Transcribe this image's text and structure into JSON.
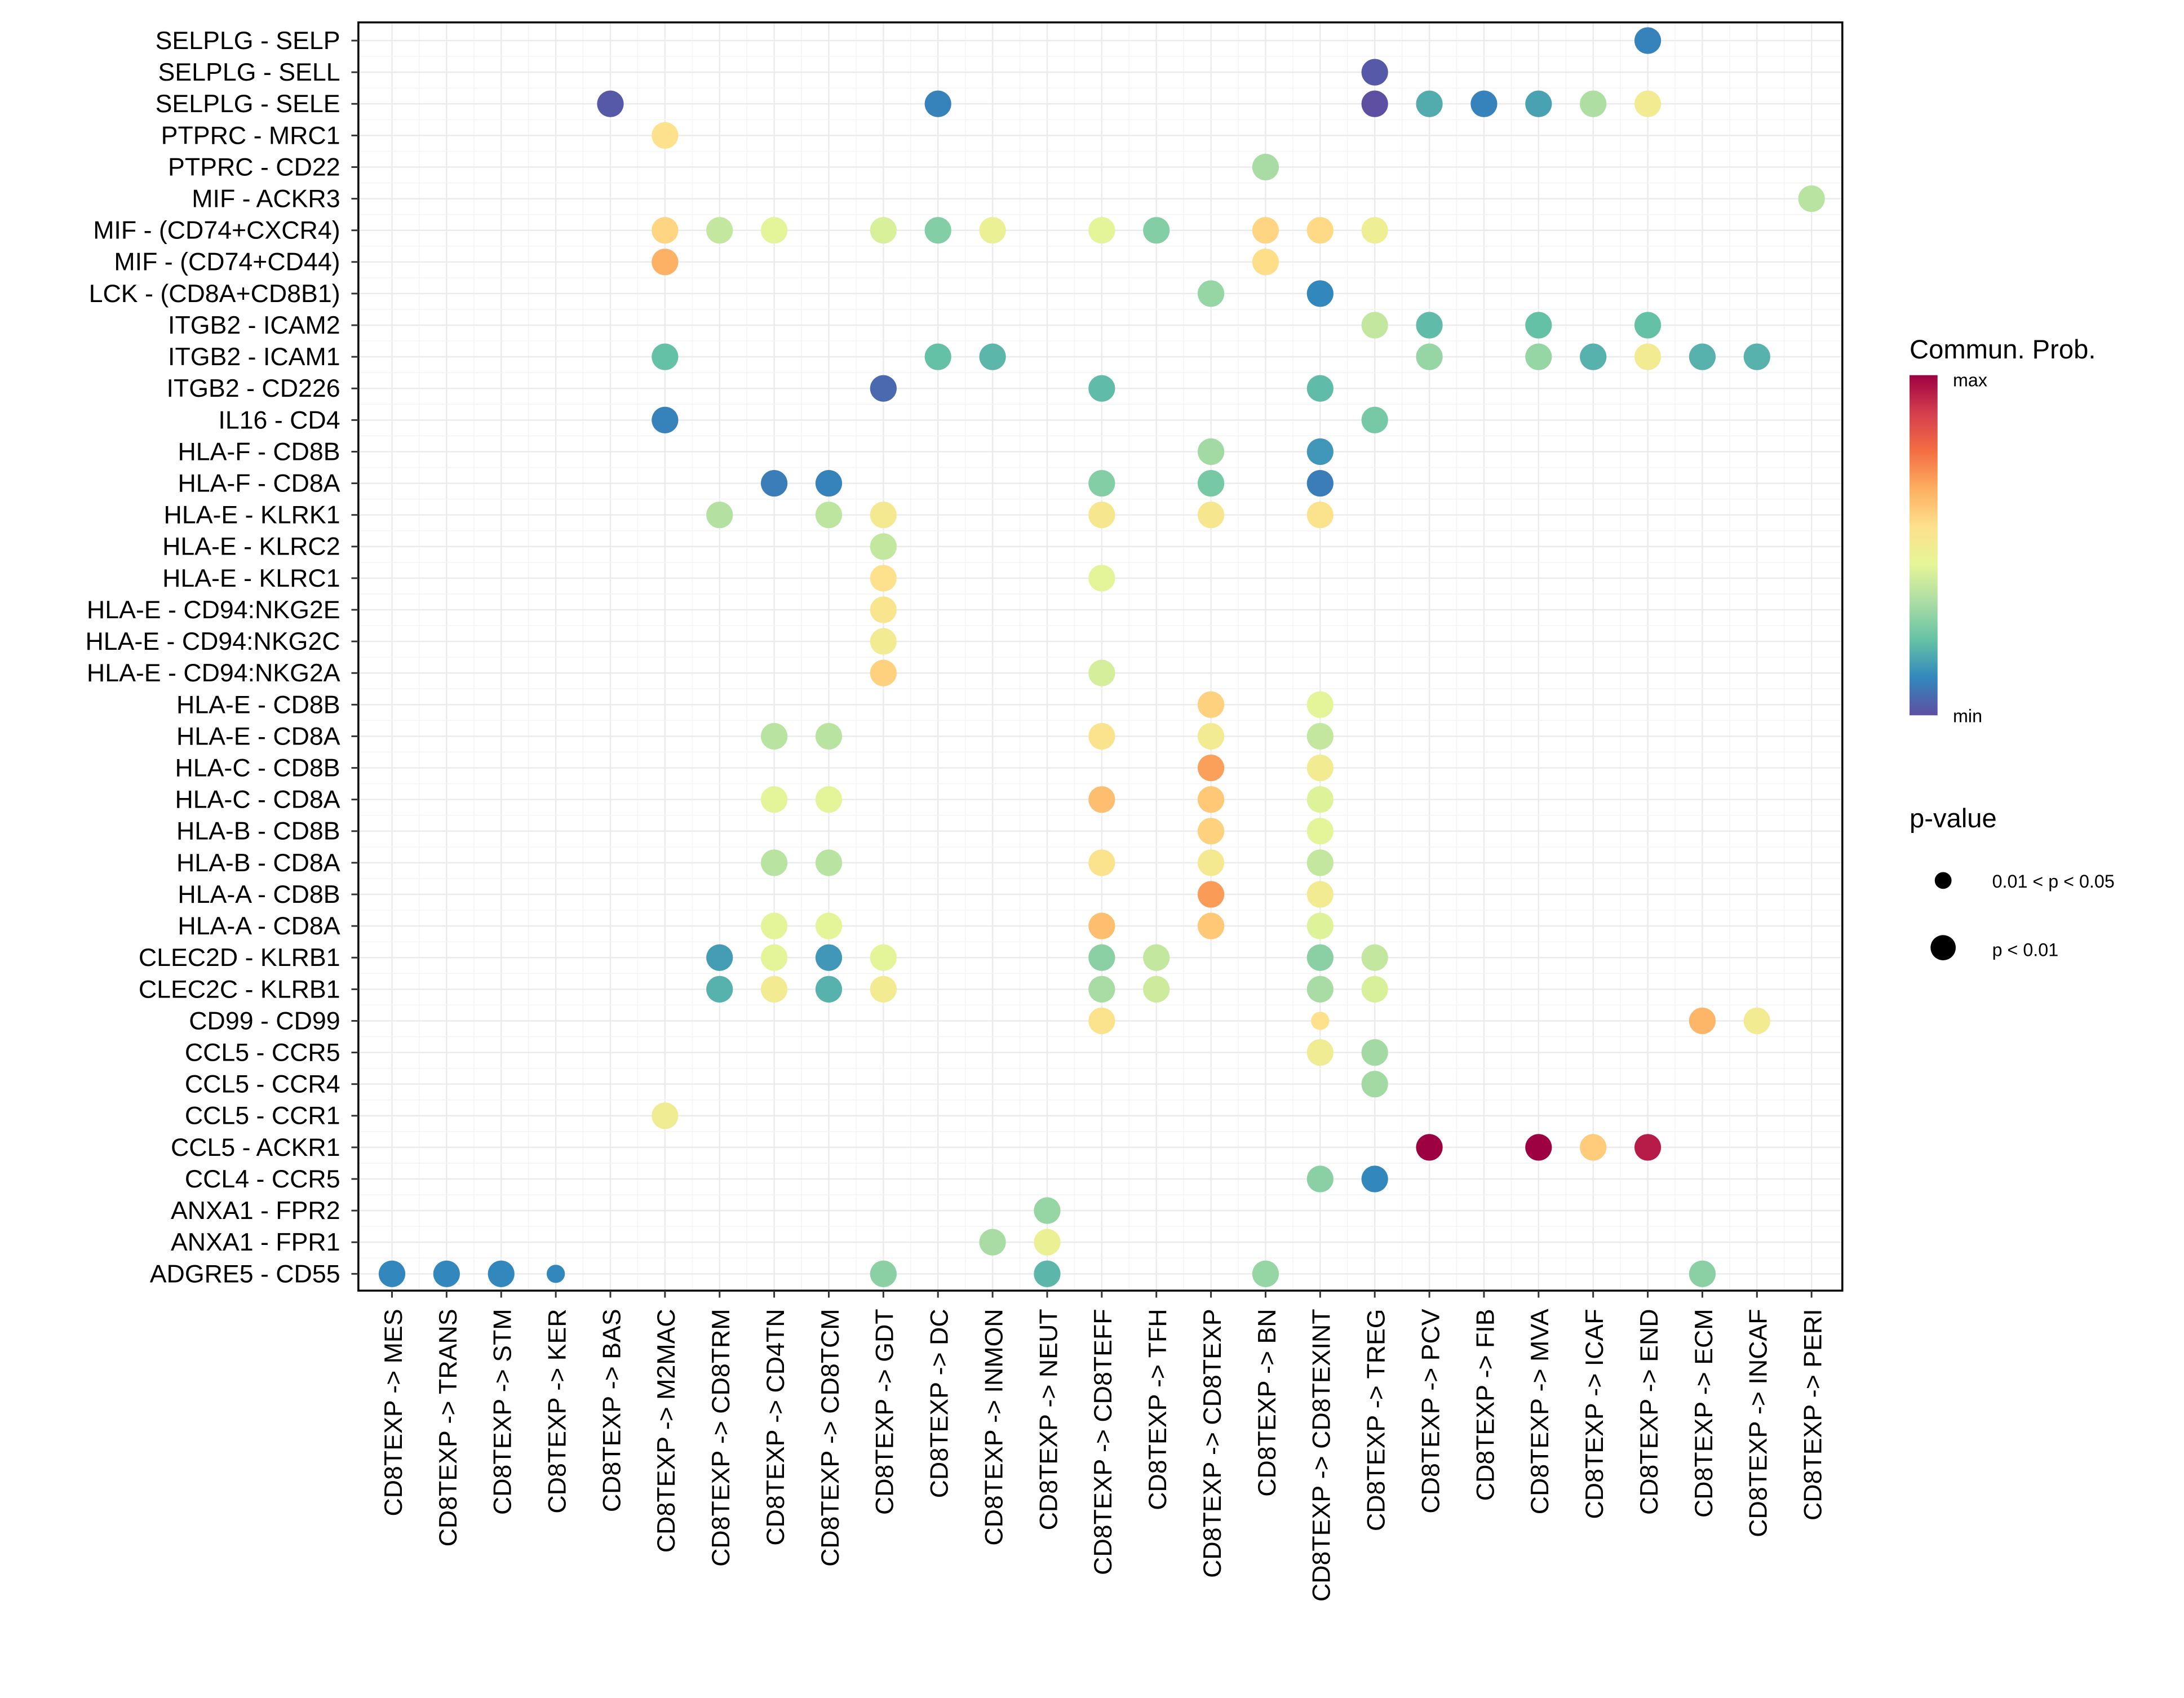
{
  "chart_data": {
    "type": "scatter",
    "subtype": "dot-plot",
    "title": "",
    "xlabel": "",
    "ylabel": "",
    "grid": true,
    "x_categories": [
      "CD8TEXP -> MES",
      "CD8TEXP -> TRANS",
      "CD8TEXP -> STM",
      "CD8TEXP -> KER",
      "CD8TEXP -> BAS",
      "CD8TEXP -> M2MAC",
      "CD8TEXP -> CD8TRM",
      "CD8TEXP -> CD4TN",
      "CD8TEXP -> CD8TCM",
      "CD8TEXP -> GDT",
      "CD8TEXP -> DC",
      "CD8TEXP -> INMON",
      "CD8TEXP -> NEUT",
      "CD8TEXP -> CD8TEFF",
      "CD8TEXP -> TFH",
      "CD8TEXP -> CD8TEXP",
      "CD8TEXP -> BN",
      "CD8TEXP -> CD8TEXINT",
      "CD8TEXP -> TREG",
      "CD8TEXP -> PCV",
      "CD8TEXP -> FIB",
      "CD8TEXP -> MVA",
      "CD8TEXP -> ICAF",
      "CD8TEXP -> END",
      "CD8TEXP -> ECM",
      "CD8TEXP -> INCAF",
      "CD8TEXP -> PERI"
    ],
    "y_categories": [
      "SELPLG - SELP",
      "SELPLG - SELL",
      "SELPLG - SELE",
      "PTPRC - MRC1",
      "PTPRC - CD22",
      "MIF - ACKR3",
      "MIF - (CD74+CXCR4)",
      "MIF - (CD74+CD44)",
      "LCK - (CD8A+CD8B1)",
      "ITGB2 - ICAM2",
      "ITGB2 - ICAM1",
      "ITGB2 - CD226",
      "IL16 - CD4",
      "HLA-F - CD8B",
      "HLA-F - CD8A",
      "HLA-E - KLRK1",
      "HLA-E - KLRC2",
      "HLA-E - KLRC1",
      "HLA-E - CD94:NKG2E",
      "HLA-E - CD94:NKG2C",
      "HLA-E - CD94:NKG2A",
      "HLA-E - CD8B",
      "HLA-E - CD8A",
      "HLA-C - CD8B",
      "HLA-C - CD8A",
      "HLA-B - CD8B",
      "HLA-B - CD8A",
      "HLA-A - CD8B",
      "HLA-A - CD8A",
      "CLEC2D - KLRB1",
      "CLEC2C - KLRB1",
      "CD99 - CD99",
      "CCL5 - CCR5",
      "CCL5 - CCR4",
      "CCL5 - CCR1",
      "CCL5 - ACKR1",
      "CCL4 - CCR5",
      "ANXA1 - FPR2",
      "ANXA1 - FPR1",
      "ADGRE5 - CD55"
    ],
    "points_note": "x = source->target pair, y = ligand-receptor pair, prob = normalized communication probability (0=min,1=max), p = p-value class",
    "points": [
      {
        "x": "CD8TEXP -> END",
        "y": "SELPLG - SELP",
        "prob": 0.1,
        "p": "p < 0.01"
      },
      {
        "x": "CD8TEXP -> TREG",
        "y": "SELPLG - SELL",
        "prob": 0.02,
        "p": "p < 0.01"
      },
      {
        "x": "CD8TEXP -> BAS",
        "y": "SELPLG - SELE",
        "prob": 0.02,
        "p": "p < 0.01"
      },
      {
        "x": "CD8TEXP -> DC",
        "y": "SELPLG - SELE",
        "prob": 0.1,
        "p": "p < 0.01"
      },
      {
        "x": "CD8TEXP -> TREG",
        "y": "SELPLG - SELE",
        "prob": 0.0,
        "p": "p < 0.01"
      },
      {
        "x": "CD8TEXP -> PCV",
        "y": "SELPLG - SELE",
        "prob": 0.18,
        "p": "p < 0.01"
      },
      {
        "x": "CD8TEXP -> FIB",
        "y": "SELPLG - SELE",
        "prob": 0.1,
        "p": "p < 0.01"
      },
      {
        "x": "CD8TEXP -> MVA",
        "y": "SELPLG - SELE",
        "prob": 0.16,
        "p": "p < 0.01"
      },
      {
        "x": "CD8TEXP -> ICAF",
        "y": "SELPLG - SELE",
        "prob": 0.34,
        "p": "p < 0.01"
      },
      {
        "x": "CD8TEXP -> END",
        "y": "SELPLG - SELE",
        "prob": 0.5,
        "p": "p < 0.01"
      },
      {
        "x": "CD8TEXP -> M2MAC",
        "y": "PTPRC - MRC1",
        "prob": 0.55,
        "p": "p < 0.01"
      },
      {
        "x": "CD8TEXP -> BN",
        "y": "PTPRC - CD22",
        "prob": 0.33,
        "p": "p < 0.01"
      },
      {
        "x": "CD8TEXP -> PERI",
        "y": "MIF - ACKR3",
        "prob": 0.36,
        "p": "p < 0.01"
      },
      {
        "x": "CD8TEXP -> M2MAC",
        "y": "MIF - (CD74+CXCR4)",
        "prob": 0.58,
        "p": "p < 0.01"
      },
      {
        "x": "CD8TEXP -> CD8TRM",
        "y": "MIF - (CD74+CXCR4)",
        "prob": 0.38,
        "p": "p < 0.01"
      },
      {
        "x": "CD8TEXP -> CD4TN",
        "y": "MIF - (CD74+CXCR4)",
        "prob": 0.44,
        "p": "p < 0.01"
      },
      {
        "x": "CD8TEXP -> GDT",
        "y": "MIF - (CD74+CXCR4)",
        "prob": 0.42,
        "p": "p < 0.01"
      },
      {
        "x": "CD8TEXP -> DC",
        "y": "MIF - (CD74+CXCR4)",
        "prob": 0.27,
        "p": "p < 0.01"
      },
      {
        "x": "CD8TEXP -> INMON",
        "y": "MIF - (CD74+CXCR4)",
        "prob": 0.47,
        "p": "p < 0.01"
      },
      {
        "x": "CD8TEXP -> CD8TEFF",
        "y": "MIF - (CD74+CXCR4)",
        "prob": 0.44,
        "p": "p < 0.01"
      },
      {
        "x": "CD8TEXP -> TFH",
        "y": "MIF - (CD74+CXCR4)",
        "prob": 0.27,
        "p": "p < 0.01"
      },
      {
        "x": "CD8TEXP -> BN",
        "y": "MIF - (CD74+CXCR4)",
        "prob": 0.58,
        "p": "p < 0.01"
      },
      {
        "x": "CD8TEXP -> CD8TEXINT",
        "y": "MIF - (CD74+CXCR4)",
        "prob": 0.57,
        "p": "p < 0.01"
      },
      {
        "x": "CD8TEXP -> TREG",
        "y": "MIF - (CD74+CXCR4)",
        "prob": 0.48,
        "p": "p < 0.01"
      },
      {
        "x": "CD8TEXP -> M2MAC",
        "y": "MIF - (CD74+CD44)",
        "prob": 0.66,
        "p": "p < 0.01"
      },
      {
        "x": "CD8TEXP -> BN",
        "y": "MIF - (CD74+CD44)",
        "prob": 0.56,
        "p": "p < 0.01"
      },
      {
        "x": "CD8TEXP -> CD8TEXP",
        "y": "LCK - (CD8A+CD8B1)",
        "prob": 0.3,
        "p": "p < 0.01"
      },
      {
        "x": "CD8TEXP -> CD8TEXINT",
        "y": "LCK - (CD8A+CD8B1)",
        "prob": 0.11,
        "p": "p < 0.01"
      },
      {
        "x": "CD8TEXP -> TREG",
        "y": "ITGB2 - ICAM2",
        "prob": 0.38,
        "p": "p < 0.01"
      },
      {
        "x": "CD8TEXP -> PCV",
        "y": "ITGB2 - ICAM2",
        "prob": 0.21,
        "p": "p < 0.01"
      },
      {
        "x": "CD8TEXP -> MVA",
        "y": "ITGB2 - ICAM2",
        "prob": 0.22,
        "p": "p < 0.01"
      },
      {
        "x": "CD8TEXP -> END",
        "y": "ITGB2 - ICAM2",
        "prob": 0.22,
        "p": "p < 0.01"
      },
      {
        "x": "CD8TEXP -> M2MAC",
        "y": "ITGB2 - ICAM1",
        "prob": 0.22,
        "p": "p < 0.01"
      },
      {
        "x": "CD8TEXP -> DC",
        "y": "ITGB2 - ICAM1",
        "prob": 0.22,
        "p": "p < 0.01"
      },
      {
        "x": "CD8TEXP -> INMON",
        "y": "ITGB2 - ICAM1",
        "prob": 0.2,
        "p": "p < 0.01"
      },
      {
        "x": "CD8TEXP -> PCV",
        "y": "ITGB2 - ICAM1",
        "prob": 0.3,
        "p": "p < 0.01"
      },
      {
        "x": "CD8TEXP -> MVA",
        "y": "ITGB2 - ICAM1",
        "prob": 0.3,
        "p": "p < 0.01"
      },
      {
        "x": "CD8TEXP -> ICAF",
        "y": "ITGB2 - ICAM1",
        "prob": 0.19,
        "p": "p < 0.01"
      },
      {
        "x": "CD8TEXP -> END",
        "y": "ITGB2 - ICAM1",
        "prob": 0.5,
        "p": "p < 0.01"
      },
      {
        "x": "CD8TEXP -> ECM",
        "y": "ITGB2 - ICAM1",
        "prob": 0.19,
        "p": "p < 0.01"
      },
      {
        "x": "CD8TEXP -> INCAF",
        "y": "ITGB2 - ICAM1",
        "prob": 0.19,
        "p": "p < 0.01"
      },
      {
        "x": "CD8TEXP -> GDT",
        "y": "ITGB2 - CD226",
        "prob": 0.05,
        "p": "p < 0.01"
      },
      {
        "x": "CD8TEXP -> CD8TEFF",
        "y": "ITGB2 - CD226",
        "prob": 0.21,
        "p": "p < 0.01"
      },
      {
        "x": "CD8TEXP -> CD8TEXINT",
        "y": "ITGB2 - CD226",
        "prob": 0.21,
        "p": "p < 0.01"
      },
      {
        "x": "CD8TEXP -> M2MAC",
        "y": "IL16 - CD4",
        "prob": 0.1,
        "p": "p < 0.01"
      },
      {
        "x": "CD8TEXP -> TREG",
        "y": "IL16 - CD4",
        "prob": 0.25,
        "p": "p < 0.01"
      },
      {
        "x": "CD8TEXP -> CD8TEXP",
        "y": "HLA-F - CD8B",
        "prob": 0.32,
        "p": "p < 0.01"
      },
      {
        "x": "CD8TEXP -> CD8TEXINT",
        "y": "HLA-F - CD8B",
        "prob": 0.14,
        "p": "p < 0.01"
      },
      {
        "x": "CD8TEXP -> CD4TN",
        "y": "HLA-F - CD8A",
        "prob": 0.09,
        "p": "p < 0.01"
      },
      {
        "x": "CD8TEXP -> CD8TCM",
        "y": "HLA-F - CD8A",
        "prob": 0.1,
        "p": "p < 0.01"
      },
      {
        "x": "CD8TEXP -> CD8TEFF",
        "y": "HLA-F - CD8A",
        "prob": 0.27,
        "p": "p < 0.01"
      },
      {
        "x": "CD8TEXP -> CD8TEXP",
        "y": "HLA-F - CD8A",
        "prob": 0.25,
        "p": "p < 0.01"
      },
      {
        "x": "CD8TEXP -> CD8TEXINT",
        "y": "HLA-F - CD8A",
        "prob": 0.09,
        "p": "p < 0.01"
      },
      {
        "x": "CD8TEXP -> CD8TRM",
        "y": "HLA-E - KLRK1",
        "prob": 0.35,
        "p": "p < 0.01"
      },
      {
        "x": "CD8TEXP -> CD8TCM",
        "y": "HLA-E - KLRK1",
        "prob": 0.37,
        "p": "p < 0.01"
      },
      {
        "x": "CD8TEXP -> GDT",
        "y": "HLA-E - KLRK1",
        "prob": 0.51,
        "p": "p < 0.01"
      },
      {
        "x": "CD8TEXP -> CD8TEFF",
        "y": "HLA-E - KLRK1",
        "prob": 0.52,
        "p": "p < 0.01"
      },
      {
        "x": "CD8TEXP -> CD8TEXP",
        "y": "HLA-E - KLRK1",
        "prob": 0.52,
        "p": "p < 0.01"
      },
      {
        "x": "CD8TEXP -> CD8TEXINT",
        "y": "HLA-E - KLRK1",
        "prob": 0.54,
        "p": "p < 0.01"
      },
      {
        "x": "CD8TEXP -> GDT",
        "y": "HLA-E - KLRC2",
        "prob": 0.38,
        "p": "p < 0.01"
      },
      {
        "x": "CD8TEXP -> GDT",
        "y": "HLA-E - KLRC1",
        "prob": 0.55,
        "p": "p < 0.01"
      },
      {
        "x": "CD8TEXP -> CD8TEFF",
        "y": "HLA-E - KLRC1",
        "prob": 0.44,
        "p": "p < 0.01"
      },
      {
        "x": "CD8TEXP -> GDT",
        "y": "HLA-E - CD94:NKG2E",
        "prob": 0.53,
        "p": "p < 0.01"
      },
      {
        "x": "CD8TEXP -> GDT",
        "y": "HLA-E - CD94:NKG2C",
        "prob": 0.5,
        "p": "p < 0.01"
      },
      {
        "x": "CD8TEXP -> GDT",
        "y": "HLA-E - CD94:NKG2A",
        "prob": 0.59,
        "p": "p < 0.01"
      },
      {
        "x": "CD8TEXP -> CD8TEFF",
        "y": "HLA-E - CD94:NKG2A",
        "prob": 0.41,
        "p": "p < 0.01"
      },
      {
        "x": "CD8TEXP -> CD8TEXP",
        "y": "HLA-E - CD8B",
        "prob": 0.59,
        "p": "p < 0.01"
      },
      {
        "x": "CD8TEXP -> CD8TEXINT",
        "y": "HLA-E - CD8B",
        "prob": 0.44,
        "p": "p < 0.01"
      },
      {
        "x": "CD8TEXP -> CD4TN",
        "y": "HLA-E - CD8A",
        "prob": 0.36,
        "p": "p < 0.01"
      },
      {
        "x": "CD8TEXP -> CD8TCM",
        "y": "HLA-E - CD8A",
        "prob": 0.36,
        "p": "p < 0.01"
      },
      {
        "x": "CD8TEXP -> CD8TEFF",
        "y": "HLA-E - CD8A",
        "prob": 0.54,
        "p": "p < 0.01"
      },
      {
        "x": "CD8TEXP -> CD8TEXP",
        "y": "HLA-E - CD8A",
        "prob": 0.5,
        "p": "p < 0.01"
      },
      {
        "x": "CD8TEXP -> CD8TEXINT",
        "y": "HLA-E - CD8A",
        "prob": 0.38,
        "p": "p < 0.01"
      },
      {
        "x": "CD8TEXP -> CD8TEXP",
        "y": "HLA-C - CD8B",
        "prob": 0.69,
        "p": "p < 0.01"
      },
      {
        "x": "CD8TEXP -> CD8TEXINT",
        "y": "HLA-C - CD8B",
        "prob": 0.5,
        "p": "p < 0.01"
      },
      {
        "x": "CD8TEXP -> CD4TN",
        "y": "HLA-C - CD8A",
        "prob": 0.44,
        "p": "p < 0.01"
      },
      {
        "x": "CD8TEXP -> CD8TCM",
        "y": "HLA-C - CD8A",
        "prob": 0.44,
        "p": "p < 0.01"
      },
      {
        "x": "CD8TEXP -> CD8TEFF",
        "y": "HLA-C - CD8A",
        "prob": 0.63,
        "p": "p < 0.01"
      },
      {
        "x": "CD8TEXP -> CD8TEXP",
        "y": "HLA-C - CD8A",
        "prob": 0.61,
        "p": "p < 0.01"
      },
      {
        "x": "CD8TEXP -> CD8TEXINT",
        "y": "HLA-C - CD8A",
        "prob": 0.43,
        "p": "p < 0.01"
      },
      {
        "x": "CD8TEXP -> CD8TEXP",
        "y": "HLA-B - CD8B",
        "prob": 0.59,
        "p": "p < 0.01"
      },
      {
        "x": "CD8TEXP -> CD8TEXINT",
        "y": "HLA-B - CD8B",
        "prob": 0.44,
        "p": "p < 0.01"
      },
      {
        "x": "CD8TEXP -> CD4TN",
        "y": "HLA-B - CD8A",
        "prob": 0.36,
        "p": "p < 0.01"
      },
      {
        "x": "CD8TEXP -> CD8TCM",
        "y": "HLA-B - CD8A",
        "prob": 0.36,
        "p": "p < 0.01"
      },
      {
        "x": "CD8TEXP -> CD8TEFF",
        "y": "HLA-B - CD8A",
        "prob": 0.54,
        "p": "p < 0.01"
      },
      {
        "x": "CD8TEXP -> CD8TEXP",
        "y": "HLA-B - CD8A",
        "prob": 0.51,
        "p": "p < 0.01"
      },
      {
        "x": "CD8TEXP -> CD8TEXINT",
        "y": "HLA-B - CD8A",
        "prob": 0.38,
        "p": "p < 0.01"
      },
      {
        "x": "CD8TEXP -> CD8TEXP",
        "y": "HLA-A - CD8B",
        "prob": 0.7,
        "p": "p < 0.01"
      },
      {
        "x": "CD8TEXP -> CD8TEXINT",
        "y": "HLA-A - CD8B",
        "prob": 0.5,
        "p": "p < 0.01"
      },
      {
        "x": "CD8TEXP -> CD4TN",
        "y": "HLA-A - CD8A",
        "prob": 0.44,
        "p": "p < 0.01"
      },
      {
        "x": "CD8TEXP -> CD8TCM",
        "y": "HLA-A - CD8A",
        "prob": 0.44,
        "p": "p < 0.01"
      },
      {
        "x": "CD8TEXP -> CD8TEFF",
        "y": "HLA-A - CD8A",
        "prob": 0.63,
        "p": "p < 0.01"
      },
      {
        "x": "CD8TEXP -> CD8TEXP",
        "y": "HLA-A - CD8A",
        "prob": 0.61,
        "p": "p < 0.01"
      },
      {
        "x": "CD8TEXP -> CD8TEXINT",
        "y": "HLA-A - CD8A",
        "prob": 0.43,
        "p": "p < 0.01"
      },
      {
        "x": "CD8TEXP -> CD8TRM",
        "y": "CLEC2D - KLRB1",
        "prob": 0.15,
        "p": "p < 0.01"
      },
      {
        "x": "CD8TEXP -> CD4TN",
        "y": "CLEC2D - KLRB1",
        "prob": 0.44,
        "p": "p < 0.01"
      },
      {
        "x": "CD8TEXP -> CD8TCM",
        "y": "CLEC2D - KLRB1",
        "prob": 0.14,
        "p": "p < 0.01"
      },
      {
        "x": "CD8TEXP -> GDT",
        "y": "CLEC2D - KLRB1",
        "prob": 0.44,
        "p": "p < 0.01"
      },
      {
        "x": "CD8TEXP -> CD8TEFF",
        "y": "CLEC2D - KLRB1",
        "prob": 0.28,
        "p": "p < 0.01"
      },
      {
        "x": "CD8TEXP -> TFH",
        "y": "CLEC2D - KLRB1",
        "prob": 0.38,
        "p": "p < 0.01"
      },
      {
        "x": "CD8TEXP -> CD8TEXINT",
        "y": "CLEC2D - KLRB1",
        "prob": 0.28,
        "p": "p < 0.01"
      },
      {
        "x": "CD8TEXP -> TREG",
        "y": "CLEC2D - KLRB1",
        "prob": 0.38,
        "p": "p < 0.01"
      },
      {
        "x": "CD8TEXP -> CD8TRM",
        "y": "CLEC2C - KLRB1",
        "prob": 0.19,
        "p": "p < 0.01"
      },
      {
        "x": "CD8TEXP -> CD4TN",
        "y": "CLEC2C - KLRB1",
        "prob": 0.5,
        "p": "p < 0.01"
      },
      {
        "x": "CD8TEXP -> CD8TCM",
        "y": "CLEC2C - KLRB1",
        "prob": 0.19,
        "p": "p < 0.01"
      },
      {
        "x": "CD8TEXP -> GDT",
        "y": "CLEC2C - KLRB1",
        "prob": 0.5,
        "p": "p < 0.01"
      },
      {
        "x": "CD8TEXP -> CD8TEFF",
        "y": "CLEC2C - KLRB1",
        "prob": 0.33,
        "p": "p < 0.01"
      },
      {
        "x": "CD8TEXP -> TFH",
        "y": "CLEC2C - KLRB1",
        "prob": 0.4,
        "p": "p < 0.01"
      },
      {
        "x": "CD8TEXP -> CD8TEXINT",
        "y": "CLEC2C - KLRB1",
        "prob": 0.33,
        "p": "p < 0.01"
      },
      {
        "x": "CD8TEXP -> TREG",
        "y": "CLEC2C - KLRB1",
        "prob": 0.42,
        "p": "p < 0.01"
      },
      {
        "x": "CD8TEXP -> CD8TEFF",
        "y": "CD99 - CD99",
        "prob": 0.54,
        "p": "p < 0.01"
      },
      {
        "x": "CD8TEXP -> CD8TEXINT",
        "y": "CD99 - CD99",
        "prob": 0.55,
        "p": "0.01 < p < 0.05"
      },
      {
        "x": "CD8TEXP -> ECM",
        "y": "CD99 - CD99",
        "prob": 0.65,
        "p": "p < 0.01"
      },
      {
        "x": "CD8TEXP -> INCAF",
        "y": "CD99 - CD99",
        "prob": 0.5,
        "p": "p < 0.01"
      },
      {
        "x": "CD8TEXP -> CD8TEXINT",
        "y": "CCL5 - CCR5",
        "prob": 0.49,
        "p": "p < 0.01"
      },
      {
        "x": "CD8TEXP -> TREG",
        "y": "CCL5 - CCR5",
        "prob": 0.32,
        "p": "p < 0.01"
      },
      {
        "x": "CD8TEXP -> TREG",
        "y": "CCL5 - CCR4",
        "prob": 0.32,
        "p": "p < 0.01"
      },
      {
        "x": "CD8TEXP -> M2MAC",
        "y": "CCL5 - CCR1",
        "prob": 0.49,
        "p": "p < 0.01"
      },
      {
        "x": "CD8TEXP -> PCV",
        "y": "CCL5 - ACKR1",
        "prob": 1.0,
        "p": "p < 0.01"
      },
      {
        "x": "CD8TEXP -> MVA",
        "y": "CCL5 - ACKR1",
        "prob": 1.0,
        "p": "p < 0.01"
      },
      {
        "x": "CD8TEXP -> ICAF",
        "y": "CCL5 - ACKR1",
        "prob": 0.6,
        "p": "p < 0.01"
      },
      {
        "x": "CD8TEXP -> END",
        "y": "CCL5 - ACKR1",
        "prob": 0.95,
        "p": "p < 0.01"
      },
      {
        "x": "CD8TEXP -> CD8TEXINT",
        "y": "CCL4 - CCR5",
        "prob": 0.28,
        "p": "p < 0.01"
      },
      {
        "x": "CD8TEXP -> TREG",
        "y": "CCL4 - CCR5",
        "prob": 0.11,
        "p": "p < 0.01"
      },
      {
        "x": "CD8TEXP -> NEUT",
        "y": "ANXA1 - FPR2",
        "prob": 0.3,
        "p": "p < 0.01"
      },
      {
        "x": "CD8TEXP -> INMON",
        "y": "ANXA1 - FPR1",
        "prob": 0.33,
        "p": "p < 0.01"
      },
      {
        "x": "CD8TEXP -> NEUT",
        "y": "ANXA1 - FPR1",
        "prob": 0.47,
        "p": "p < 0.01"
      },
      {
        "x": "CD8TEXP -> MES",
        "y": "ADGRE5 - CD55",
        "prob": 0.11,
        "p": "p < 0.01"
      },
      {
        "x": "CD8TEXP -> TRANS",
        "y": "ADGRE5 - CD55",
        "prob": 0.11,
        "p": "p < 0.01"
      },
      {
        "x": "CD8TEXP -> STM",
        "y": "ADGRE5 - CD55",
        "prob": 0.11,
        "p": "p < 0.01"
      },
      {
        "x": "CD8TEXP -> KER",
        "y": "ADGRE5 - CD55",
        "prob": 0.11,
        "p": "0.01 < p < 0.05"
      },
      {
        "x": "CD8TEXP -> GDT",
        "y": "ADGRE5 - CD55",
        "prob": 0.28,
        "p": "p < 0.01"
      },
      {
        "x": "CD8TEXP -> NEUT",
        "y": "ADGRE5 - CD55",
        "prob": 0.2,
        "p": "p < 0.01"
      },
      {
        "x": "CD8TEXP -> BN",
        "y": "ADGRE5 - CD55",
        "prob": 0.3,
        "p": "p < 0.01"
      },
      {
        "x": "CD8TEXP -> ECM",
        "y": "ADGRE5 - CD55",
        "prob": 0.28,
        "p": "p < 0.01"
      }
    ],
    "color_legend": {
      "title": "Commun. Prob.",
      "max_label": "max",
      "min_label": "min",
      "palette": [
        "#5E4FA2",
        "#3288BD",
        "#66C2A5",
        "#ABDDA4",
        "#E6F598",
        "#FEE08B",
        "#FDAE61",
        "#F46D43",
        "#D53E4F",
        "#9E0142"
      ]
    },
    "size_legend": {
      "title": "p-value",
      "items": [
        {
          "label": "0.01 < p < 0.05",
          "size": "small"
        },
        {
          "label": "p < 0.01",
          "size": "large"
        }
      ]
    }
  }
}
